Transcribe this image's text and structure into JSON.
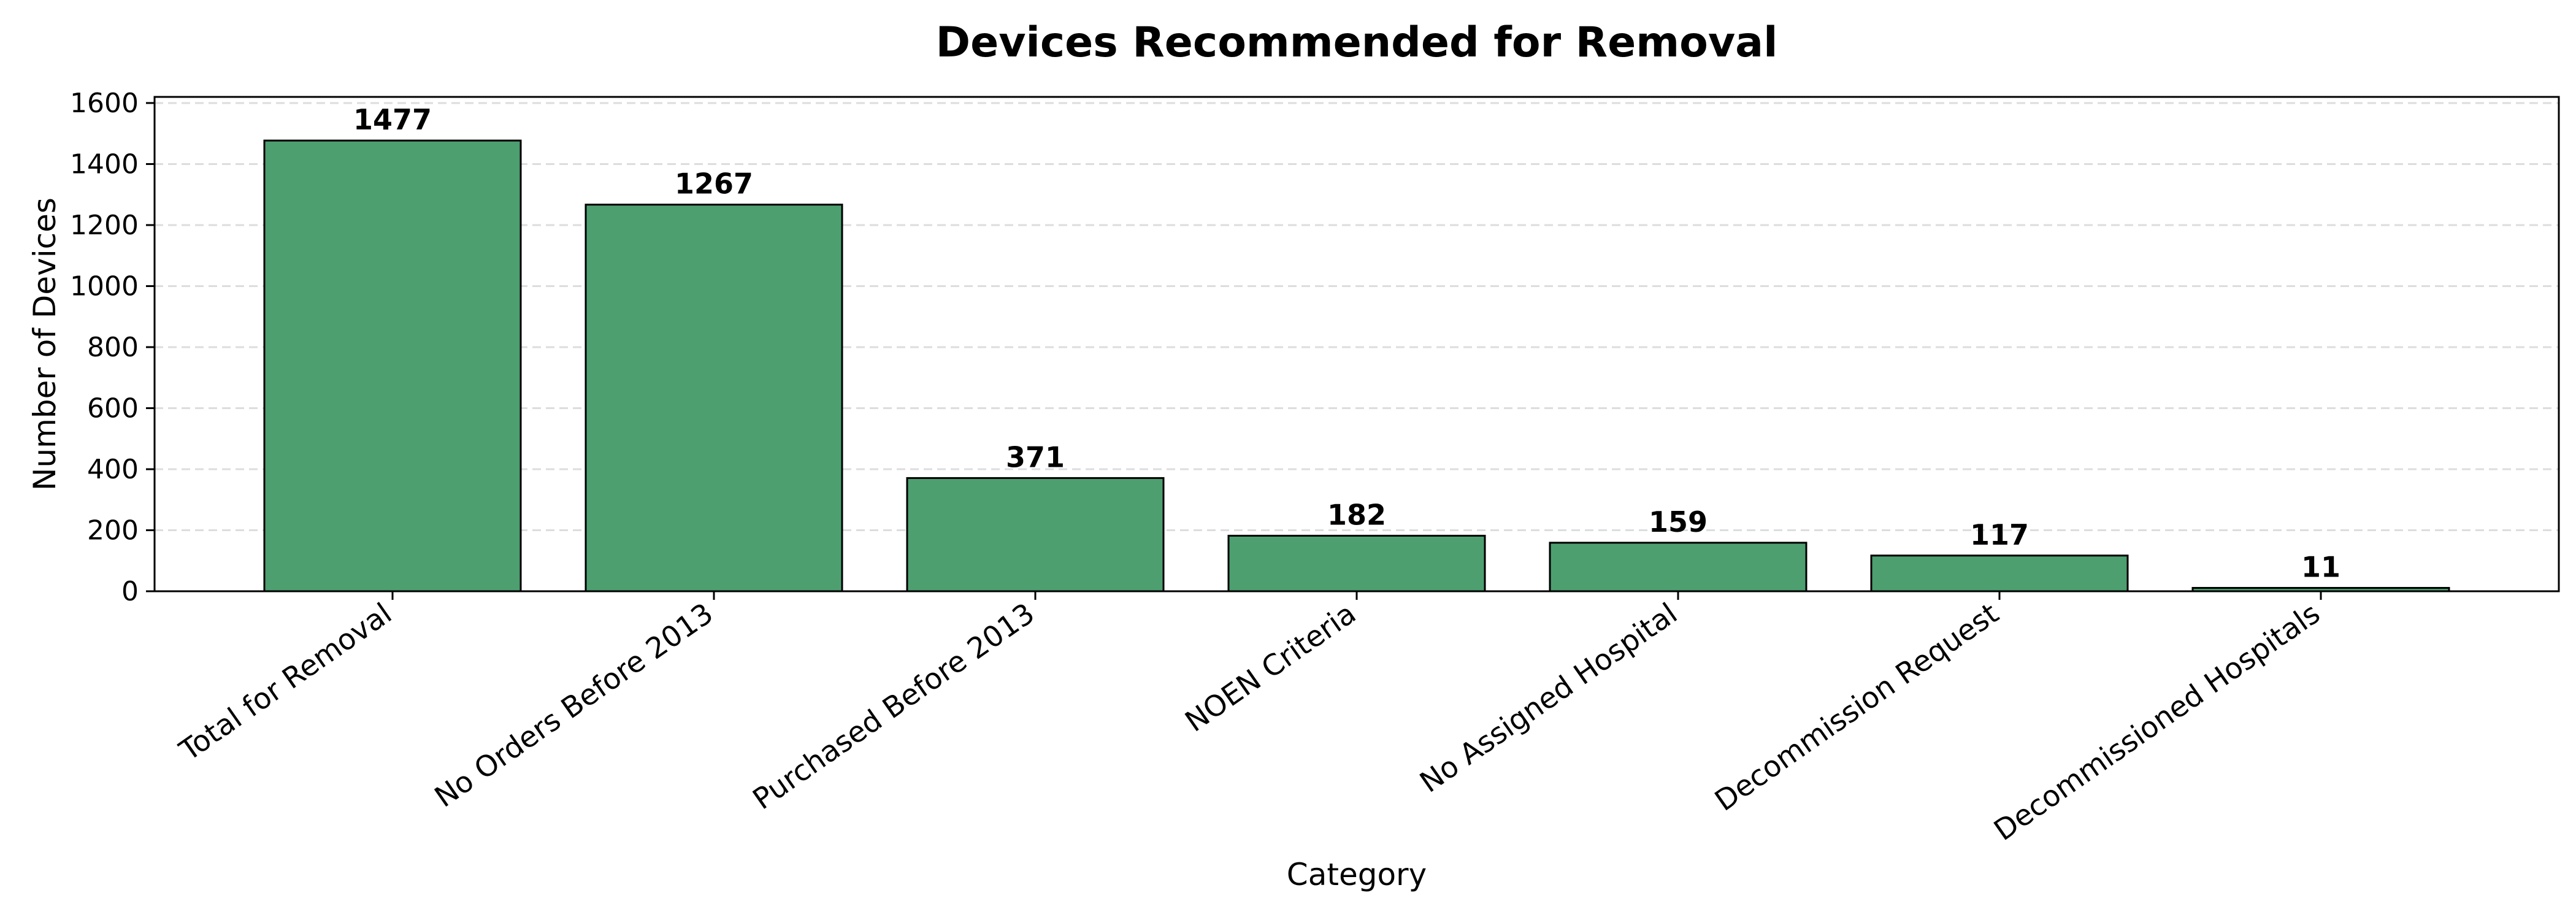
{
  "chart_data": {
    "type": "bar",
    "title": "Devices Recommended for Removal",
    "xlabel": "Category",
    "ylabel": "Number of Devices",
    "categories": [
      "Total for Removal",
      "No Orders Before 2013",
      "Purchased Before 2013",
      "NOEN Criteria",
      "No Assigned Hospital",
      "Decommission Request",
      "Decommissioned Hospitals"
    ],
    "values": [
      1477,
      1267,
      371,
      182,
      159,
      117,
      11
    ],
    "value_labels": [
      "1477",
      "1267",
      "371",
      "182",
      "159",
      "117",
      "11"
    ],
    "ylim": [
      0,
      1620
    ],
    "yticks": [
      0,
      200,
      400,
      600,
      800,
      1000,
      1200,
      1400,
      1600
    ],
    "grid": "y-dashed",
    "legend": "none",
    "colors": {
      "bar_fill": "#4d9f70",
      "bar_edge": "#000000",
      "grid": "#dddddd",
      "axis": "#000000"
    }
  }
}
